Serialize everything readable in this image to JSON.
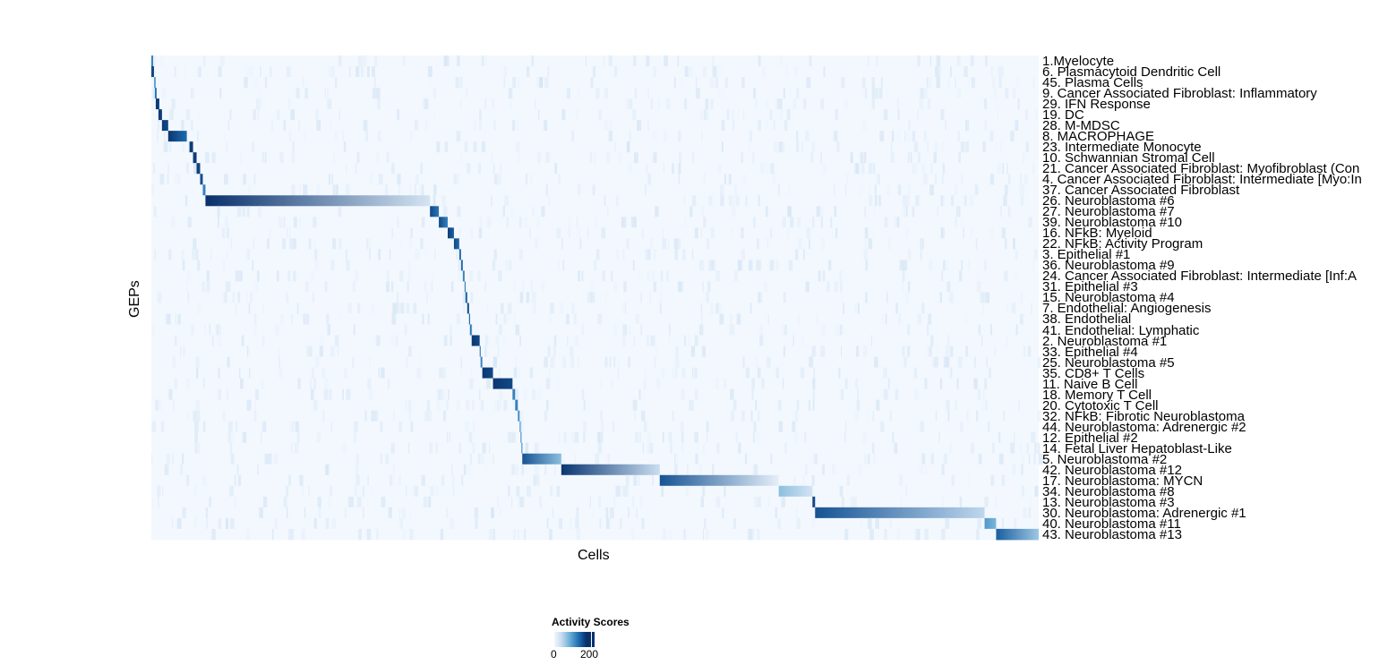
{
  "chart_data": {
    "type": "heatmap",
    "xlabel": "Cells",
    "ylabel": "GEPs",
    "legend": {
      "title": "Activity Scores",
      "ticks": [
        0,
        200
      ],
      "range": [
        0,
        220
      ],
      "colors": [
        "#f7fbff",
        "#c6dbef",
        "#6baed6",
        "#2171b5",
        "#08306b"
      ]
    },
    "rows": [
      {
        "label": "1.Myelocyte",
        "cells": [
          0.0,
          0.002
        ],
        "peak": 150,
        "tail": 150
      },
      {
        "label": "6. Plasmacytoid Dendritic Cell",
        "cells": [
          0.0,
          0.003
        ],
        "peak": 200,
        "tail": 200
      },
      {
        "label": "45. Plasma Cells",
        "cells": [
          0.003,
          0.005
        ],
        "peak": 120,
        "tail": 120
      },
      {
        "label": "9. Cancer Associated Fibroblast: Inflammatory",
        "cells": [
          0.004,
          0.006
        ],
        "peak": 160,
        "tail": 160
      },
      {
        "label": "29. IFN Response",
        "cells": [
          0.005,
          0.009
        ],
        "peak": 210,
        "tail": 210
      },
      {
        "label": "19. DC",
        "cells": [
          0.008,
          0.012
        ],
        "peak": 210,
        "tail": 210
      },
      {
        "label": "28. M-MDSC",
        "cells": [
          0.012,
          0.019
        ],
        "peak": 210,
        "tail": 200
      },
      {
        "label": "8. MACROPHAGE",
        "cells": [
          0.019,
          0.04
        ],
        "peak": 215,
        "tail": 170
      },
      {
        "label": "23. Intermediate Monocyte",
        "cells": [
          0.043,
          0.047
        ],
        "peak": 210,
        "tail": 210
      },
      {
        "label": "10. Schwannian Stromal Cell",
        "cells": [
          0.047,
          0.051
        ],
        "peak": 210,
        "tail": 210
      },
      {
        "label": "21. Cancer Associated Fibroblast: Myofibroblast (Con",
        "cells": [
          0.051,
          0.055
        ],
        "peak": 210,
        "tail": 200
      },
      {
        "label": "4. Cancer Associated Fibroblast: Intermediate [Myo:In",
        "cells": [
          0.055,
          0.058
        ],
        "peak": 200,
        "tail": 190
      },
      {
        "label": "37. Cancer Associated Fibroblast",
        "cells": [
          0.058,
          0.061
        ],
        "peak": 150,
        "tail": 150
      },
      {
        "label": "26. Neuroblastoma #6",
        "cells": [
          0.061,
          0.314
        ],
        "peak": 220,
        "tail": 40
      },
      {
        "label": "27. Neuroblastoma #7",
        "cells": [
          0.314,
          0.324
        ],
        "peak": 200,
        "tail": 160
      },
      {
        "label": "39. Neuroblastoma #10",
        "cells": [
          0.324,
          0.334
        ],
        "peak": 200,
        "tail": 150
      },
      {
        "label": "16. NFkB: Myeloid",
        "cells": [
          0.334,
          0.341
        ],
        "peak": 210,
        "tail": 180
      },
      {
        "label": "22. NFkB: Activity Program",
        "cells": [
          0.341,
          0.347
        ],
        "peak": 200,
        "tail": 170
      },
      {
        "label": "3. Epithelial #1",
        "cells": [
          0.347,
          0.349
        ],
        "peak": 170,
        "tail": 170
      },
      {
        "label": "36. Neuroblastoma #9",
        "cells": [
          0.349,
          0.351
        ],
        "peak": 170,
        "tail": 170
      },
      {
        "label": "24. Cancer Associated Fibroblast: Intermediate [Inf:A",
        "cells": [
          0.351,
          0.353
        ],
        "peak": 150,
        "tail": 150
      },
      {
        "label": "31. Epithelial #3",
        "cells": [
          0.353,
          0.354
        ],
        "peak": 150,
        "tail": 150
      },
      {
        "label": "15. Neuroblastoma #4",
        "cells": [
          0.354,
          0.356
        ],
        "peak": 180,
        "tail": 180
      },
      {
        "label": "7. Endothelial: Angiogenesis",
        "cells": [
          0.356,
          0.358
        ],
        "peak": 200,
        "tail": 200
      },
      {
        "label": "38. Endothelial",
        "cells": [
          0.358,
          0.359
        ],
        "peak": 170,
        "tail": 170
      },
      {
        "label": "41. Endothelial: Lymphatic",
        "cells": [
          0.359,
          0.361
        ],
        "peak": 160,
        "tail": 160
      },
      {
        "label": "2. Neuroblastoma #1",
        "cells": [
          0.361,
          0.37
        ],
        "peak": 215,
        "tail": 200
      },
      {
        "label": "33. Epithelial #4",
        "cells": [
          0.37,
          0.371
        ],
        "peak": 150,
        "tail": 150
      },
      {
        "label": "25. Neuroblastoma #5",
        "cells": [
          0.371,
          0.373
        ],
        "peak": 150,
        "tail": 150
      },
      {
        "label": "35. CD8+ T Cells",
        "cells": [
          0.373,
          0.385
        ],
        "peak": 215,
        "tail": 200
      },
      {
        "label": "11. Naive B Cell",
        "cells": [
          0.385,
          0.407
        ],
        "peak": 215,
        "tail": 200
      },
      {
        "label": "18. Memory T Cell",
        "cells": [
          0.407,
          0.41
        ],
        "peak": 150,
        "tail": 150
      },
      {
        "label": "20. Cytotoxic T Cell",
        "cells": [
          0.41,
          0.413
        ],
        "peak": 150,
        "tail": 150
      },
      {
        "label": "32. NFkB: Fibrotic Neuroblastoma",
        "cells": [
          0.413,
          0.415
        ],
        "peak": 140,
        "tail": 140
      },
      {
        "label": "44. Neuroblastoma: Adrenergic #2",
        "cells": [
          0.415,
          0.416
        ],
        "peak": 130,
        "tail": 130
      },
      {
        "label": "12. Epithelial #2",
        "cells": [
          0.416,
          0.417
        ],
        "peak": 130,
        "tail": 130
      },
      {
        "label": "14. Fetal Liver Hepatoblast-Like",
        "cells": [
          0.417,
          0.418
        ],
        "peak": 130,
        "tail": 130
      },
      {
        "label": "5. Neuroblastoma #2",
        "cells": [
          0.418,
          0.462
        ],
        "peak": 190,
        "tail": 90
      },
      {
        "label": "42. Neuroblastoma #12",
        "cells": [
          0.462,
          0.573
        ],
        "peak": 215,
        "tail": 50
      },
      {
        "label": "17. Neuroblastoma: MYCN",
        "cells": [
          0.573,
          0.707
        ],
        "peak": 190,
        "tail": 20
      },
      {
        "label": "34. Neuroblastoma #8",
        "cells": [
          0.707,
          0.745
        ],
        "peak": 90,
        "tail": 40
      },
      {
        "label": "13. Neuroblastoma #3",
        "cells": [
          0.745,
          0.748
        ],
        "peak": 200,
        "tail": 200
      },
      {
        "label": "30. Neuroblastoma: Adrenergic #1",
        "cells": [
          0.748,
          0.939
        ],
        "peak": 190,
        "tail": 60
      },
      {
        "label": "40. Neuroblastoma #11",
        "cells": [
          0.939,
          0.952
        ],
        "peak": 130,
        "tail": 100
      },
      {
        "label": "43. Neuroblastoma #13",
        "cells": [
          0.952,
          1.0
        ],
        "peak": 180,
        "tail": 80
      }
    ]
  }
}
